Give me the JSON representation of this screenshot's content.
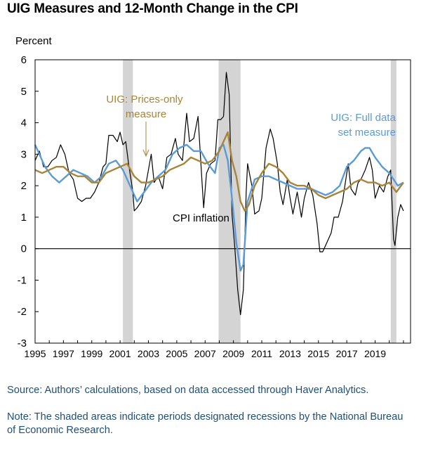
{
  "title": "UIG Measures and 12-Month Change in the CPI",
  "source": "Source: Authors’ calculations, based on data accessed through Haver Analytics.",
  "note": "Note: The shaded areas indicate periods designated recessions by the National Bureau of Economic Research.",
  "colors": {
    "cpi": "#000000",
    "prices_only": "#a8843a",
    "full_data": "#5b9bd5",
    "recession": "#d4d4d4",
    "prices_only_label": "#a8843a",
    "full_data_label": "#5b9bd5"
  },
  "chart_data": {
    "type": "line",
    "title": "UIG Measures and 12-Month Change in the CPI",
    "ylabel": "Percent",
    "xlabel": "",
    "ylim": [
      -3,
      6
    ],
    "xlim": [
      1995,
      2021.5
    ],
    "y_ticks": [
      6,
      5,
      4,
      3,
      2,
      1,
      0,
      -1,
      -2,
      -3
    ],
    "x_ticks": [
      1995,
      1997,
      1999,
      2001,
      2003,
      2005,
      2007,
      2009,
      2011,
      2013,
      2015,
      2017,
      2019
    ],
    "recessions": [
      [
        2001.2,
        2001.9
      ],
      [
        2007.95,
        2009.5
      ],
      [
        2020.1,
        2020.5
      ]
    ],
    "annotations": {
      "prices_only": {
        "lines": [
          "UIG: Prices-only",
          "measure"
        ]
      },
      "full_data": {
        "lines": [
          "UIG: Full data",
          "set measure"
        ]
      },
      "cpi": {
        "lines": [
          "CPI inflation"
        ]
      }
    },
    "series": [
      {
        "name": "CPI inflation",
        "points": [
          [
            1995.0,
            2.8
          ],
          [
            1995.3,
            3.1
          ],
          [
            1995.6,
            2.6
          ],
          [
            1995.9,
            2.6
          ],
          [
            1996.2,
            2.8
          ],
          [
            1996.5,
            2.9
          ],
          [
            1996.8,
            3.3
          ],
          [
            1997.1,
            3.0
          ],
          [
            1997.4,
            2.4
          ],
          [
            1997.7,
            2.2
          ],
          [
            1998.0,
            1.6
          ],
          [
            1998.3,
            1.5
          ],
          [
            1998.6,
            1.6
          ],
          [
            1998.9,
            1.6
          ],
          [
            1999.2,
            1.8
          ],
          [
            1999.5,
            2.1
          ],
          [
            1999.8,
            2.6
          ],
          [
            2000.0,
            2.7
          ],
          [
            2000.2,
            3.6
          ],
          [
            2000.5,
            3.6
          ],
          [
            2000.8,
            3.4
          ],
          [
            2001.0,
            3.7
          ],
          [
            2001.2,
            3.3
          ],
          [
            2001.4,
            3.4
          ],
          [
            2001.6,
            2.7
          ],
          [
            2001.8,
            2.1
          ],
          [
            2001.9,
            1.8
          ],
          [
            2002.0,
            1.2
          ],
          [
            2002.2,
            1.3
          ],
          [
            2002.5,
            1.5
          ],
          [
            2002.8,
            2.0
          ],
          [
            2003.0,
            2.5
          ],
          [
            2003.2,
            3.0
          ],
          [
            2003.4,
            2.1
          ],
          [
            2003.7,
            2.3
          ],
          [
            2004.0,
            1.9
          ],
          [
            2004.3,
            2.9
          ],
          [
            2004.6,
            3.0
          ],
          [
            2004.9,
            3.5
          ],
          [
            2005.1,
            3.0
          ],
          [
            2005.4,
            2.8
          ],
          [
            2005.7,
            4.3
          ],
          [
            2005.9,
            3.4
          ],
          [
            2006.2,
            3.5
          ],
          [
            2006.5,
            4.2
          ],
          [
            2006.8,
            2.0
          ],
          [
            2006.9,
            1.3
          ],
          [
            2007.1,
            2.4
          ],
          [
            2007.4,
            2.7
          ],
          [
            2007.7,
            2.8
          ],
          [
            2007.9,
            4.1
          ],
          [
            2008.1,
            4.1
          ],
          [
            2008.3,
            4.2
          ],
          [
            2008.5,
            5.6
          ],
          [
            2008.7,
            4.9
          ],
          [
            2008.9,
            1.1
          ],
          [
            2009.1,
            0.0
          ],
          [
            2009.3,
            -1.3
          ],
          [
            2009.5,
            -2.1
          ],
          [
            2009.7,
            -1.3
          ],
          [
            2009.9,
            1.8
          ],
          [
            2010.0,
            2.7
          ],
          [
            2010.3,
            2.0
          ],
          [
            2010.5,
            1.1
          ],
          [
            2010.8,
            1.2
          ],
          [
            2011.0,
            1.6
          ],
          [
            2011.3,
            3.2
          ],
          [
            2011.6,
            3.8
          ],
          [
            2011.8,
            3.5
          ],
          [
            2012.1,
            2.7
          ],
          [
            2012.3,
            1.8
          ],
          [
            2012.5,
            1.4
          ],
          [
            2012.8,
            2.2
          ],
          [
            2013.0,
            1.6
          ],
          [
            2013.2,
            1.1
          ],
          [
            2013.5,
            1.8
          ],
          [
            2013.8,
            1.0
          ],
          [
            2014.0,
            1.6
          ],
          [
            2014.3,
            2.1
          ],
          [
            2014.6,
            1.7
          ],
          [
            2014.9,
            0.8
          ],
          [
            2015.1,
            -0.1
          ],
          [
            2015.3,
            -0.1
          ],
          [
            2015.6,
            0.2
          ],
          [
            2015.9,
            0.5
          ],
          [
            2016.1,
            1.0
          ],
          [
            2016.4,
            1.0
          ],
          [
            2016.7,
            1.5
          ],
          [
            2016.9,
            2.1
          ],
          [
            2017.1,
            2.7
          ],
          [
            2017.3,
            1.9
          ],
          [
            2017.6,
            1.7
          ],
          [
            2017.8,
            2.1
          ],
          [
            2018.0,
            2.2
          ],
          [
            2018.3,
            2.5
          ],
          [
            2018.6,
            2.9
          ],
          [
            2018.8,
            2.5
          ],
          [
            2019.0,
            1.6
          ],
          [
            2019.3,
            2.0
          ],
          [
            2019.6,
            1.8
          ],
          [
            2019.9,
            2.3
          ],
          [
            2020.1,
            2.5
          ],
          [
            2020.3,
            0.3
          ],
          [
            2020.4,
            0.1
          ],
          [
            2020.6,
            1.0
          ],
          [
            2020.8,
            1.4
          ],
          [
            2021.0,
            1.2
          ]
        ]
      },
      {
        "name": "UIG: Prices-only measure",
        "points": [
          [
            1995.0,
            2.5
          ],
          [
            1995.5,
            2.4
          ],
          [
            1996.0,
            2.5
          ],
          [
            1996.5,
            2.6
          ],
          [
            1997.0,
            2.6
          ],
          [
            1997.5,
            2.4
          ],
          [
            1998.0,
            2.3
          ],
          [
            1998.5,
            2.3
          ],
          [
            1999.0,
            2.1
          ],
          [
            1999.5,
            2.1
          ],
          [
            2000.0,
            2.4
          ],
          [
            2000.5,
            2.5
          ],
          [
            2001.0,
            2.6
          ],
          [
            2001.5,
            2.7
          ],
          [
            2002.0,
            2.3
          ],
          [
            2002.5,
            2.1
          ],
          [
            2003.0,
            2.1
          ],
          [
            2003.5,
            2.2
          ],
          [
            2004.0,
            2.3
          ],
          [
            2004.5,
            2.5
          ],
          [
            2005.0,
            2.6
          ],
          [
            2005.5,
            2.7
          ],
          [
            2006.0,
            2.9
          ],
          [
            2006.5,
            2.8
          ],
          [
            2007.0,
            2.7
          ],
          [
            2007.5,
            2.8
          ],
          [
            2008.0,
            3.1
          ],
          [
            2008.3,
            3.4
          ],
          [
            2008.6,
            3.7
          ],
          [
            2008.9,
            2.8
          ],
          [
            2009.2,
            2.3
          ],
          [
            2009.5,
            1.5
          ],
          [
            2009.8,
            1.2
          ],
          [
            2010.1,
            1.4
          ],
          [
            2010.5,
            2.0
          ],
          [
            2011.0,
            2.4
          ],
          [
            2011.5,
            2.7
          ],
          [
            2012.0,
            2.6
          ],
          [
            2012.5,
            2.4
          ],
          [
            2013.0,
            2.1
          ],
          [
            2013.5,
            2.0
          ],
          [
            2014.0,
            2.0
          ],
          [
            2014.5,
            1.9
          ],
          [
            2015.0,
            1.7
          ],
          [
            2015.5,
            1.6
          ],
          [
            2016.0,
            1.7
          ],
          [
            2016.5,
            1.8
          ],
          [
            2017.0,
            1.9
          ],
          [
            2017.5,
            2.1
          ],
          [
            2018.0,
            2.2
          ],
          [
            2018.5,
            2.1
          ],
          [
            2019.0,
            2.1
          ],
          [
            2019.5,
            2.0
          ],
          [
            2020.0,
            2.1
          ],
          [
            2020.5,
            1.8
          ],
          [
            2021.0,
            2.1
          ]
        ]
      },
      {
        "name": "UIG: Full data set measure",
        "points": [
          [
            1995.0,
            3.3
          ],
          [
            1995.3,
            3.0
          ],
          [
            1995.7,
            2.6
          ],
          [
            1996.2,
            2.3
          ],
          [
            1996.7,
            2.1
          ],
          [
            1997.2,
            2.3
          ],
          [
            1997.7,
            2.5
          ],
          [
            1998.2,
            2.4
          ],
          [
            1998.7,
            2.3
          ],
          [
            1999.2,
            2.1
          ],
          [
            1999.7,
            2.3
          ],
          [
            2000.2,
            2.7
          ],
          [
            2000.7,
            2.8
          ],
          [
            2001.2,
            2.5
          ],
          [
            2001.7,
            2.0
          ],
          [
            2002.2,
            1.5
          ],
          [
            2002.7,
            1.8
          ],
          [
            2003.2,
            2.1
          ],
          [
            2003.7,
            2.3
          ],
          [
            2004.2,
            2.5
          ],
          [
            2004.7,
            3.0
          ],
          [
            2005.2,
            3.2
          ],
          [
            2005.7,
            3.3
          ],
          [
            2006.2,
            3.1
          ],
          [
            2006.7,
            3.1
          ],
          [
            2007.2,
            2.7
          ],
          [
            2007.7,
            2.4
          ],
          [
            2008.0,
            3.2
          ],
          [
            2008.3,
            3.3
          ],
          [
            2008.6,
            2.8
          ],
          [
            2008.9,
            1.6
          ],
          [
            2009.2,
            0.2
          ],
          [
            2009.5,
            -0.7
          ],
          [
            2009.7,
            -0.5
          ],
          [
            2010.0,
            1.5
          ],
          [
            2010.5,
            2.2
          ],
          [
            2011.0,
            2.3
          ],
          [
            2011.5,
            2.3
          ],
          [
            2012.0,
            2.2
          ],
          [
            2012.5,
            2.1
          ],
          [
            2013.0,
            2.0
          ],
          [
            2013.5,
            1.9
          ],
          [
            2014.0,
            1.9
          ],
          [
            2014.5,
            1.9
          ],
          [
            2015.0,
            1.8
          ],
          [
            2015.5,
            1.7
          ],
          [
            2016.0,
            1.8
          ],
          [
            2016.5,
            2.0
          ],
          [
            2017.0,
            2.6
          ],
          [
            2017.5,
            2.8
          ],
          [
            2018.0,
            3.1
          ],
          [
            2018.3,
            3.2
          ],
          [
            2018.6,
            3.2
          ],
          [
            2019.0,
            2.9
          ],
          [
            2019.5,
            2.6
          ],
          [
            2020.0,
            2.4
          ],
          [
            2020.3,
            2.2
          ],
          [
            2020.6,
            2.0
          ],
          [
            2021.0,
            2.1
          ]
        ]
      }
    ]
  }
}
